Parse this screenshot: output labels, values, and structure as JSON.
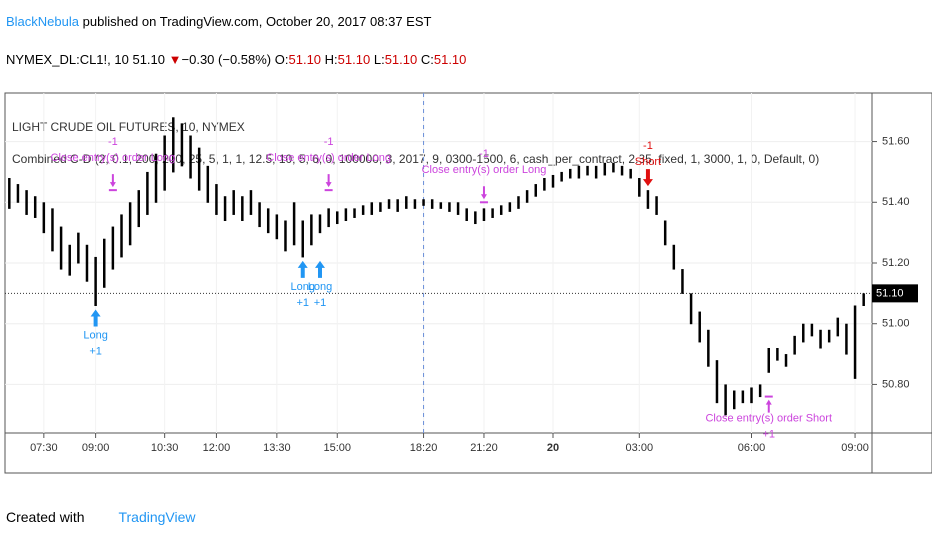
{
  "header": {
    "author": "BlackNebula",
    "published": "published on TradingView.com, October 20, 2017 08:37 EST",
    "symbol": "NYMEX_DL:CL1!, 10",
    "price": "51.10",
    "arrow": "▼",
    "change": "−0.30 (−0.58%)",
    "o_label": "O:",
    "o": "51.10",
    "h_label": "H:",
    "h": "51.10",
    "l_label": "L:",
    "l": "51.10",
    "c_label": "C:",
    "c": "51.10"
  },
  "chart_data": {
    "type": "ohlc",
    "title": "LIGHT CRUDE OIL FUTURES, 10, NYMEX",
    "subtitle": "Combined C-D (2, 0.1, 200, 200, 25, 5, 1, 1, 12.5, 10, 5, 6, 0, 100000, 3, 2017, 9, 0300-1500, 6, cash_per_contract, 2.35, fixed, 1, 3000, 1, 0, Default, 0)",
    "color": "#000000",
    "low": [
      51.38,
      51.4,
      51.36,
      51.35,
      51.3,
      51.24,
      51.18,
      51.16,
      51.2,
      51.14,
      51.06,
      51.12,
      51.18,
      51.22,
      51.26,
      51.32,
      51.36,
      51.4,
      51.44,
      51.5,
      51.52,
      51.48,
      51.44,
      51.4,
      51.36,
      51.34,
      51.36,
      51.34,
      51.36,
      51.32,
      51.3,
      51.28,
      51.24,
      51.26,
      51.22,
      51.26,
      51.3,
      51.32,
      51.33,
      51.34,
      51.35,
      51.36,
      51.36,
      51.37,
      51.38,
      51.37,
      51.38,
      51.38,
      51.39,
      51.38,
      51.38,
      51.37,
      51.36,
      51.34,
      51.33,
      51.34,
      51.35,
      51.36,
      51.37,
      51.38,
      51.4,
      51.42,
      51.44,
      51.45,
      51.47,
      51.48,
      51.48,
      51.49,
      51.48,
      51.49,
      51.5,
      51.49,
      51.48,
      51.42,
      51.38,
      51.36,
      51.26,
      51.18,
      51.1,
      51.0,
      50.94,
      50.86,
      50.74,
      50.7,
      50.72,
      50.74,
      50.74,
      50.76,
      50.84,
      50.88,
      50.86,
      50.9,
      50.94,
      50.96,
      50.92,
      50.94,
      50.96,
      50.9,
      50.82,
      51.06
    ],
    "high": [
      51.48,
      51.46,
      51.44,
      51.42,
      51.4,
      51.38,
      51.32,
      51.26,
      51.3,
      51.26,
      51.22,
      51.28,
      51.32,
      51.36,
      51.4,
      51.44,
      51.5,
      51.56,
      51.62,
      51.68,
      51.66,
      51.62,
      51.58,
      51.52,
      51.46,
      51.42,
      51.44,
      51.42,
      51.44,
      51.4,
      51.38,
      51.36,
      51.34,
      51.4,
      51.34,
      51.36,
      51.36,
      51.38,
      51.37,
      51.38,
      51.38,
      51.39,
      51.4,
      51.4,
      51.41,
      51.41,
      51.42,
      51.41,
      51.41,
      51.41,
      51.4,
      51.4,
      51.4,
      51.38,
      51.37,
      51.38,
      51.38,
      51.39,
      51.4,
      51.42,
      51.44,
      51.46,
      51.48,
      51.49,
      51.5,
      51.51,
      51.52,
      51.52,
      51.52,
      51.53,
      51.53,
      51.52,
      51.51,
      51.48,
      51.44,
      51.42,
      51.34,
      51.26,
      51.18,
      51.1,
      51.04,
      50.98,
      50.88,
      50.8,
      50.78,
      50.78,
      50.79,
      50.8,
      50.92,
      50.92,
      50.9,
      50.96,
      51.0,
      51.0,
      50.98,
      50.98,
      51.02,
      51.0,
      51.06,
      51.1
    ],
    "xlim": [
      -0.5,
      99.5
    ],
    "ylim": [
      50.64,
      51.76
    ],
    "xticks": [
      {
        "value": 4,
        "label": "07:30"
      },
      {
        "value": 10,
        "label": "09:00"
      },
      {
        "value": 18,
        "label": "10:30"
      },
      {
        "value": 24,
        "label": "12:00"
      },
      {
        "value": 31,
        "label": "13:30"
      },
      {
        "value": 38,
        "label": "15:00"
      },
      {
        "value": 48,
        "label": "18:20"
      },
      {
        "value": 55,
        "label": "21:20"
      },
      {
        "value": 63,
        "label": "20"
      },
      {
        "value": 73,
        "label": "03:00"
      },
      {
        "value": 86,
        "label": "06:00"
      },
      {
        "value": 98,
        "label": "09:00"
      }
    ],
    "yticks": [
      {
        "value": 50.8,
        "label": "50.80"
      },
      {
        "value": 51.0,
        "label": "51.00"
      },
      {
        "value": 51.2,
        "label": "51.20"
      },
      {
        "value": 51.4,
        "label": "51.40"
      },
      {
        "value": 51.6,
        "label": "51.60"
      }
    ],
    "last": {
      "value": 51.1,
      "label": "51.10"
    },
    "session_break": 48,
    "grid": true,
    "signals": [
      {
        "kind": "long",
        "x": 10,
        "y": 51.06,
        "text": "Long",
        "qty": "+1"
      },
      {
        "kind": "long",
        "x": 34,
        "y": 51.22,
        "text": "Long",
        "qty": "+1"
      },
      {
        "kind": "long",
        "x": 36,
        "y": 51.22,
        "text": "Long",
        "qty": "+1"
      },
      {
        "kind": "short",
        "x": 74,
        "y": 51.44,
        "text": "Short",
        "qty": "-1"
      },
      {
        "kind": "close",
        "x": 12,
        "y": 51.44,
        "text": "Close entry(s) order Long",
        "qty": "-1"
      },
      {
        "kind": "close",
        "x": 37,
        "y": 51.44,
        "text": "Close entry(s) order Long",
        "qty": "-1"
      },
      {
        "kind": "close",
        "x": 55,
        "y": 51.4,
        "text": "Close entry(s) order Long",
        "qty": "-1"
      },
      {
        "kind": "closeshort",
        "x": 88,
        "y": 50.76,
        "text": "Close entry(s) order Short",
        "qty": "+1"
      }
    ]
  },
  "footer": {
    "created": "Created with",
    "brand": "TradingView"
  }
}
